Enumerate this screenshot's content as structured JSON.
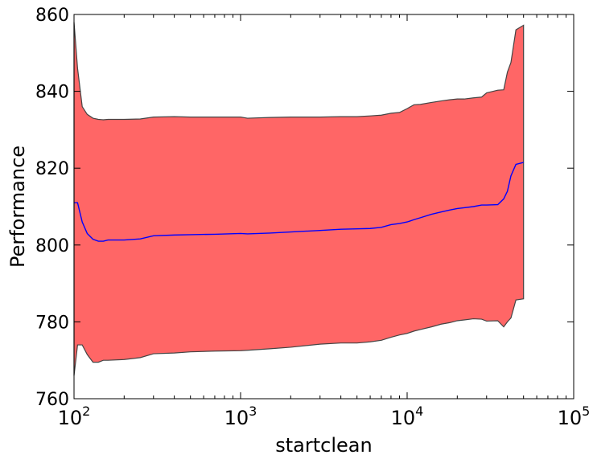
{
  "chart_data": {
    "type": "area",
    "title": "",
    "xlabel": "startclean",
    "ylabel": "Performance",
    "xscale": "log",
    "xlim": [
      100,
      100000
    ],
    "ylim": [
      760,
      860
    ],
    "grid": false,
    "x_ticks": [
      {
        "value": 100,
        "base": "10",
        "exp": "2"
      },
      {
        "value": 1000,
        "base": "10",
        "exp": "3"
      },
      {
        "value": 10000,
        "base": "10",
        "exp": "4"
      },
      {
        "value": 100000,
        "base": "10",
        "exp": "5"
      }
    ],
    "y_ticks": [
      760,
      780,
      800,
      820,
      840,
      860
    ],
    "colors": {
      "band": "#ff6666",
      "band_edge": "#444444",
      "line": "#0000ff"
    },
    "series": [
      {
        "x": [
          100,
          105,
          112,
          120,
          130,
          140,
          150,
          160,
          200,
          250,
          300,
          400,
          500,
          700,
          1000,
          1100,
          1500,
          2000,
          3000,
          4000,
          5000,
          6000,
          7000,
          8000,
          9000,
          10000,
          11000,
          12000,
          14000,
          16000,
          18000,
          20000,
          22000,
          25000,
          28000,
          30000,
          35000,
          38000,
          40000,
          42000,
          45000,
          50000
        ],
        "mean": [
          811,
          811,
          806,
          803,
          801.5,
          801,
          801,
          801.3,
          801.3,
          801.6,
          802.4,
          802.6,
          802.7,
          802.8,
          803,
          802.9,
          803.1,
          803.4,
          803.8,
          804.1,
          804.2,
          804.3,
          804.6,
          805.3,
          805.6,
          806,
          806.6,
          807.1,
          808,
          808.6,
          809.1,
          809.5,
          809.7,
          810,
          810.4,
          810.4,
          810.5,
          812,
          814,
          818,
          821,
          821.5
        ],
        "upper": [
          858,
          846,
          836,
          834,
          833,
          832.7,
          832.6,
          832.7,
          832.7,
          832.8,
          833.3,
          833.4,
          833.3,
          833.3,
          833.3,
          833.0,
          833.2,
          833.3,
          833.3,
          833.4,
          833.4,
          833.6,
          833.8,
          834.3,
          834.5,
          835.5,
          836.5,
          836.6,
          837.1,
          837.5,
          837.8,
          838,
          838,
          838.3,
          838.5,
          839.6,
          840.3,
          840.4,
          845,
          847.5,
          856,
          857.2
        ],
        "lower": [
          766,
          774,
          774,
          771.5,
          769.5,
          769.5,
          770,
          770,
          770.2,
          770.7,
          771.7,
          771.9,
          772.2,
          772.4,
          772.5,
          772.6,
          773,
          773.4,
          774.2,
          774.5,
          774.5,
          774.8,
          775.2,
          776,
          776.6,
          777,
          777.6,
          778,
          778.7,
          779.4,
          779.8,
          780.3,
          780.5,
          780.8,
          780.7,
          780.2,
          780.3,
          778.7,
          780,
          781,
          785.7,
          786
        ]
      }
    ]
  }
}
